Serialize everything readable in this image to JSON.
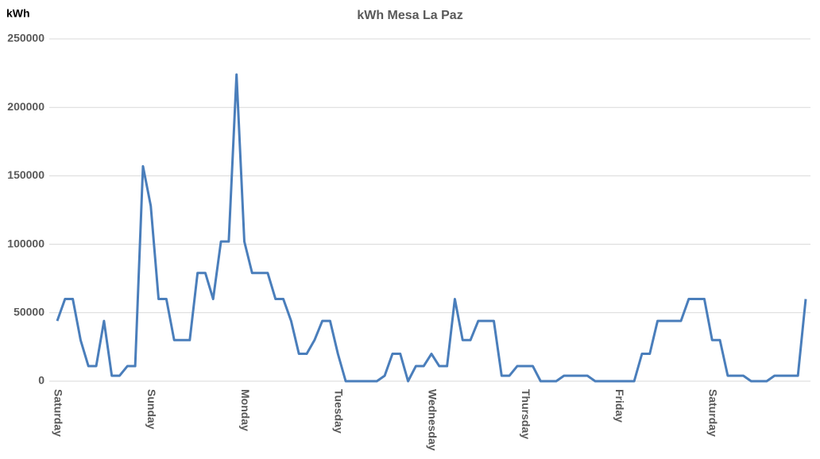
{
  "chart_data": {
    "type": "line",
    "title": "kWh Mesa La Paz",
    "y_label": "kWh",
    "categories": [
      "Saturday",
      null,
      null,
      null,
      null,
      null,
      null,
      null,
      null,
      null,
      null,
      null,
      "Sunday",
      null,
      null,
      null,
      null,
      null,
      null,
      null,
      null,
      null,
      null,
      null,
      "Monday",
      null,
      null,
      null,
      null,
      null,
      null,
      null,
      null,
      null,
      null,
      null,
      "Tuesday",
      null,
      null,
      null,
      null,
      null,
      null,
      null,
      null,
      null,
      null,
      null,
      "Wednesday",
      null,
      null,
      null,
      null,
      null,
      null,
      null,
      null,
      null,
      null,
      null,
      "Thursday",
      null,
      null,
      null,
      null,
      null,
      null,
      null,
      null,
      null,
      null,
      null,
      "Friday",
      null,
      null,
      null,
      null,
      null,
      null,
      null,
      null,
      null,
      null,
      null,
      "Saturday",
      null,
      null,
      null,
      null,
      null,
      null,
      null,
      null,
      null,
      null,
      null,
      null
    ],
    "series": [
      {
        "name": "kWh",
        "color": "#4a7ebb",
        "values": [
          44000,
          60000,
          60000,
          30000,
          11000,
          11000,
          44000,
          4000,
          4000,
          11000,
          11000,
          157000,
          128000,
          60000,
          60000,
          30000,
          30000,
          30000,
          79000,
          79000,
          60000,
          102000,
          102000,
          224000,
          102000,
          79000,
          79000,
          79000,
          60000,
          60000,
          44000,
          20000,
          20000,
          30000,
          44000,
          44000,
          20000,
          0,
          0,
          0,
          0,
          0,
          4000,
          20000,
          20000,
          0,
          11000,
          11000,
          20000,
          11000,
          11000,
          60000,
          30000,
          30000,
          44000,
          44000,
          44000,
          4000,
          4000,
          11000,
          11000,
          11000,
          0,
          0,
          0,
          4000,
          4000,
          4000,
          4000,
          0,
          0,
          0,
          0,
          0,
          0,
          20000,
          20000,
          44000,
          44000,
          44000,
          44000,
          60000,
          60000,
          60000,
          30000,
          30000,
          4000,
          4000,
          4000,
          0,
          0,
          0,
          4000,
          4000,
          4000,
          4000,
          60000
        ]
      }
    ],
    "ylim": [
      0,
      250000
    ],
    "yticks": [
      0,
      50000,
      100000,
      150000,
      200000,
      250000
    ],
    "grid": true
  }
}
